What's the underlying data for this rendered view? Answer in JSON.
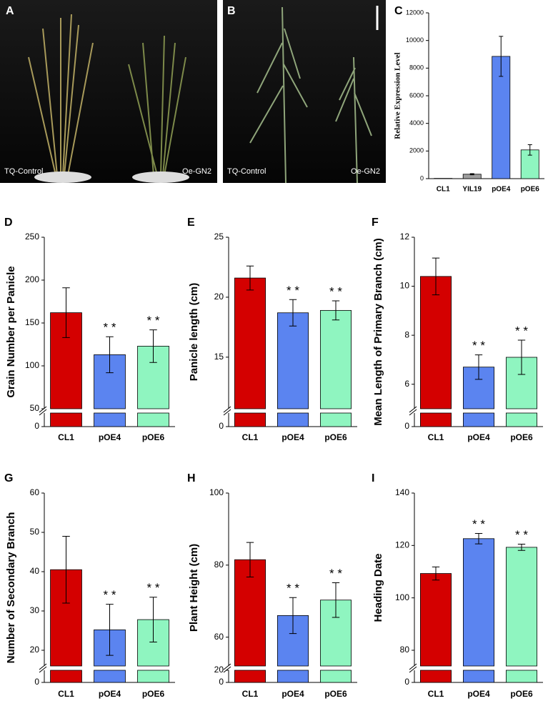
{
  "panels": [
    {
      "letter": "A",
      "labels": [
        "TQ-Control",
        "Oe-GN2"
      ]
    },
    {
      "letter": "B",
      "labels": [
        "TQ-Control",
        "Oe-GN2"
      ]
    }
  ],
  "chart_data": [
    {
      "letter": "C",
      "type": "bar",
      "ylabel": "Relative Expression Level",
      "categories": [
        "CL1",
        "YIL19",
        "pOE4",
        "pOE6"
      ],
      "values": [
        20,
        320,
        8850,
        2080
      ],
      "errors": [
        0,
        40,
        1450,
        380
      ],
      "colors": [
        "#d40000",
        "#9e9e9e",
        "#5b84f0",
        "#8ff5c0"
      ],
      "ylim": [
        0,
        12000
      ],
      "yticks": [
        0,
        2000,
        4000,
        6000,
        8000,
        10000,
        12000
      ]
    },
    {
      "letter": "D",
      "type": "bar",
      "ylabel": "Grain Number per Panicle",
      "categories": [
        "CL1",
        "pOE4",
        "pOE6"
      ],
      "values": [
        162,
        113,
        123
      ],
      "errors": [
        29,
        21,
        19
      ],
      "significance": [
        null,
        "* *",
        "* *"
      ],
      "colors": [
        "#d40000",
        "#5b84f0",
        "#8ff5c0"
      ],
      "ylim": [
        50,
        250
      ],
      "yticks": [
        50,
        100,
        150,
        200,
        250
      ],
      "lower_yticks": [
        0
      ]
    },
    {
      "letter": "E",
      "type": "bar",
      "ylabel": "Panicle length (cm)",
      "categories": [
        "CL1",
        "pOE4",
        "pOE6"
      ],
      "values": [
        21.6,
        18.7,
        18.9
      ],
      "errors": [
        1.0,
        1.1,
        0.8
      ],
      "significance": [
        null,
        "* *",
        "* *"
      ],
      "colors": [
        "#d40000",
        "#5b84f0",
        "#8ff5c0"
      ],
      "ylim": [
        10.7,
        25
      ],
      "yticks": [
        15,
        20,
        25
      ],
      "lower_yticks": [
        0
      ]
    },
    {
      "letter": "F",
      "type": "bar",
      "ylabel": "Mean Length of Primary Branch (cm)",
      "categories": [
        "CL1",
        "pOE4",
        "pOE6"
      ],
      "values": [
        10.4,
        6.7,
        7.1
      ],
      "errors": [
        0.75,
        0.5,
        0.7
      ],
      "significance": [
        null,
        "* *",
        "* *"
      ],
      "colors": [
        "#d40000",
        "#5b84f0",
        "#8ff5c0"
      ],
      "ylim": [
        5,
        12
      ],
      "yticks": [
        6,
        8,
        10,
        12
      ],
      "lower_yticks": [
        0
      ]
    },
    {
      "letter": "G",
      "type": "bar",
      "ylabel": "Number of Secondary Branch",
      "categories": [
        "CL1",
        "pOE4",
        "pOE6"
      ],
      "values": [
        40.5,
        25.2,
        27.8
      ],
      "errors": [
        8.5,
        6.5,
        5.7
      ],
      "significance": [
        null,
        "* *",
        "* *"
      ],
      "colors": [
        "#d40000",
        "#5b84f0",
        "#8ff5c0"
      ],
      "ylim": [
        16,
        60
      ],
      "yticks": [
        20,
        30,
        40,
        50,
        60
      ],
      "lower_yticks": [
        0
      ]
    },
    {
      "letter": "H",
      "type": "bar",
      "ylabel": "Plant Height (cm)",
      "categories": [
        "CL1",
        "pOE4",
        "pOE6"
      ],
      "values": [
        81.5,
        66,
        70.3
      ],
      "errors": [
        4.8,
        5,
        4.8
      ],
      "significance": [
        null,
        "* *",
        "* *"
      ],
      "colors": [
        "#d40000",
        "#5b84f0",
        "#8ff5c0"
      ],
      "ylim": [
        52,
        100
      ],
      "yticks": [
        60,
        80,
        100
      ],
      "lower_yticks": [
        0,
        20
      ]
    },
    {
      "letter": "I",
      "type": "bar",
      "ylabel": "Heading Date",
      "categories": [
        "CL1",
        "pOE4",
        "pOE6"
      ],
      "values": [
        109.3,
        122.6,
        119.3
      ],
      "errors": [
        2.5,
        2,
        1.2
      ],
      "significance": [
        null,
        "* *",
        "* *"
      ],
      "colors": [
        "#d40000",
        "#5b84f0",
        "#8ff5c0"
      ],
      "ylim": [
        74,
        140
      ],
      "yticks": [
        80,
        100,
        120,
        140
      ],
      "lower_yticks": [
        0
      ]
    }
  ]
}
